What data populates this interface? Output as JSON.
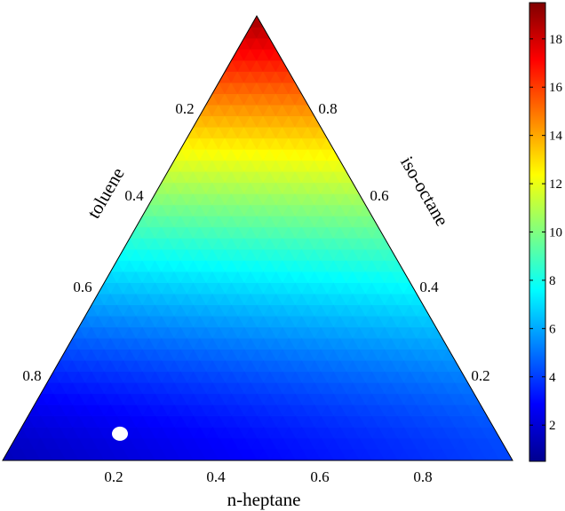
{
  "chart_data": {
    "type": "heatmap",
    "subtype": "ternary",
    "axes": {
      "bottom": {
        "label": "n-heptane",
        "ticks": [
          "0.2",
          "0.4",
          "0.6",
          "0.8"
        ]
      },
      "left": {
        "label": "toluene",
        "ticks": [
          "0.2",
          "0.4",
          "0.6",
          "0.8"
        ]
      },
      "right": {
        "label": "iso-octane",
        "ticks": [
          "0.8",
          "0.6",
          "0.4",
          "0.2"
        ]
      }
    },
    "colorbar": {
      "colormap": "jet",
      "range": [
        0.5,
        19.5
      ],
      "ticks": [
        "2",
        "4",
        "6",
        "8",
        "10",
        "12",
        "14",
        "16",
        "18"
      ]
    },
    "field_samples": [
      {
        "n_heptane": 0.0,
        "iso_octane": 1.0,
        "toluene": 0.0,
        "value": 19.0
      },
      {
        "n_heptane": 0.0,
        "iso_octane": 0.8,
        "toluene": 0.2,
        "value": 16.0
      },
      {
        "n_heptane": 0.0,
        "iso_octane": 0.6,
        "toluene": 0.4,
        "value": 11.5
      },
      {
        "n_heptane": 0.0,
        "iso_octane": 0.4,
        "toluene": 0.6,
        "value": 6.5
      },
      {
        "n_heptane": 0.0,
        "iso_octane": 0.2,
        "toluene": 0.8,
        "value": 3.0
      },
      {
        "n_heptane": 0.0,
        "iso_octane": 0.0,
        "toluene": 1.0,
        "value": 2.0
      },
      {
        "n_heptane": 0.2,
        "iso_octane": 0.0,
        "toluene": 0.8,
        "value": 2.0
      },
      {
        "n_heptane": 0.5,
        "iso_octane": 0.0,
        "toluene": 0.5,
        "value": 3.0
      },
      {
        "n_heptane": 1.0,
        "iso_octane": 0.0,
        "toluene": 0.0,
        "value": 5.0
      },
      {
        "n_heptane": 0.5,
        "iso_octane": 0.5,
        "toluene": 0.0,
        "value": 11.0
      }
    ],
    "marker": {
      "n_heptane": 0.2,
      "toluene": 0.74,
      "color": "#ffffff"
    }
  }
}
